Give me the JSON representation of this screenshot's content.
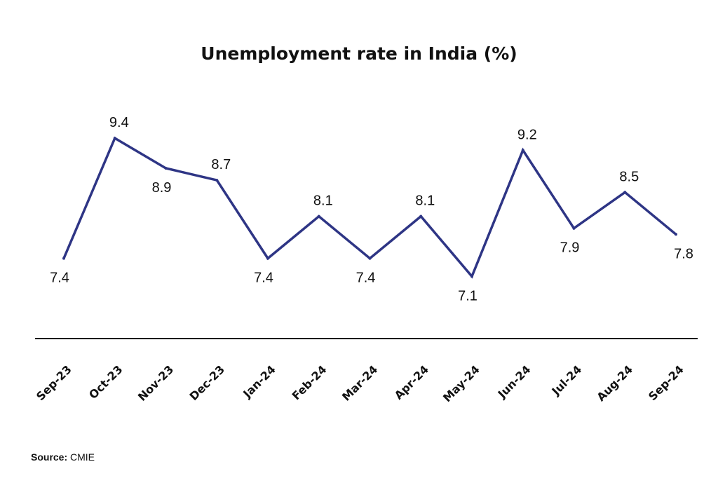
{
  "chart_data": {
    "type": "line",
    "title": "Unemployment rate in India (%)",
    "xlabel": "",
    "ylabel": "",
    "categories": [
      "Sep-23",
      "Oct-23",
      "Nov-23",
      "Dec-23",
      "Jan-24",
      "Feb-24",
      "Mar-24",
      "Apr-24",
      "May-24",
      "Jun-24",
      "Jul-24",
      "Aug-24",
      "Sep-24"
    ],
    "series": [
      {
        "values": [
          7.4,
          9.4,
          8.9,
          8.7,
          7.4,
          8.1,
          7.4,
          8.1,
          7.1,
          9.2,
          7.9,
          8.5,
          7.8
        ]
      }
    ],
    "data_labels": [
      "7.4",
      "9.4",
      "8.9",
      "8.7",
      "7.4",
      "8.1",
      "7.4",
      "8.1",
      "7.1",
      "9.2",
      "7.9",
      "8.5",
      "7.8"
    ],
    "label_positions": [
      "below",
      "above",
      "below",
      "above",
      "below",
      "above",
      "below",
      "above",
      "below",
      "above",
      "below",
      "above",
      "below"
    ],
    "ylim": [
      6.1,
      10.3
    ],
    "grid": false,
    "legend": "none",
    "line_color": "#2e3585",
    "axis_color": "#111111"
  },
  "source": {
    "label": "Source:",
    "text": "CMIE"
  }
}
